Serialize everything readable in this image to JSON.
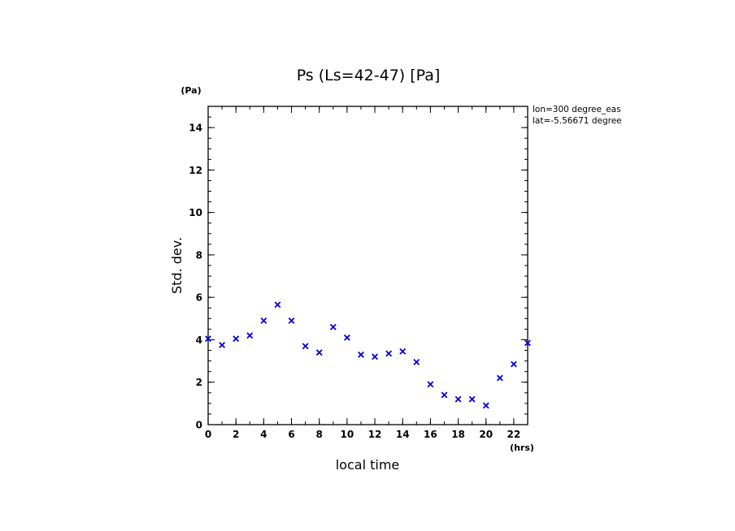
{
  "chart_data": {
    "type": "scatter",
    "title": "Ps (Ls=42-47) [Pa]",
    "xlabel": "local time",
    "ylabel": "Std. dev.",
    "x_unit": "(hrs)",
    "y_unit": "(Pa)",
    "xlim": [
      0,
      23
    ],
    "ylim": [
      0,
      15
    ],
    "x_ticks": [
      0,
      2,
      4,
      6,
      8,
      10,
      12,
      14,
      16,
      18,
      20,
      22
    ],
    "y_ticks": [
      0,
      2,
      4,
      6,
      8,
      10,
      12,
      14
    ],
    "x_minor_step": 1,
    "y_minor_step": 0.5,
    "info_lines": [
      "lon=300 degree_eas",
      "lat=-5.56671 degree"
    ],
    "marker": "x",
    "marker_color": "#0000dd",
    "grid": false,
    "series": [
      {
        "x": [
          0,
          1,
          2,
          3,
          4,
          5,
          6,
          7,
          8,
          9,
          10,
          11,
          12,
          13,
          14,
          15,
          16,
          17,
          18,
          19,
          20,
          21,
          22,
          23
        ],
        "y": [
          4.05,
          3.75,
          4.05,
          4.2,
          4.9,
          5.65,
          4.9,
          3.7,
          3.4,
          4.6,
          4.1,
          3.3,
          3.2,
          3.35,
          3.45,
          2.95,
          1.9,
          1.4,
          1.2,
          1.2,
          0.9,
          2.2,
          2.85,
          3.85
        ]
      }
    ]
  }
}
